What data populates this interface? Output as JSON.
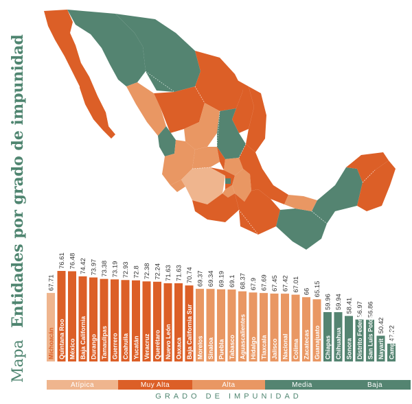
{
  "title": {
    "prefix": "Mapa",
    "main": "Entidades por grado de impunidad"
  },
  "colors": {
    "atipica": "#efb58e",
    "muy_alta": "#dc5f27",
    "alta": "#e99763",
    "media": "#548471",
    "baja": "#548471",
    "title": "#4f8570"
  },
  "legend": {
    "title": "GRADO DE IMPUNIDAD",
    "items": [
      {
        "label": "Atípica",
        "color": "#efb58e"
      },
      {
        "label": "Muy Alta",
        "color": "#dc5f27"
      },
      {
        "label": "Alta",
        "color": "#e99763"
      },
      {
        "label": "Media",
        "color": "#548471"
      },
      {
        "label": "Baja",
        "color": "#548471"
      }
    ]
  },
  "chart_data": {
    "type": "bar",
    "categories": [
      "Michoacán",
      "Quintana Roo",
      "México",
      "Baja California",
      "Durango",
      "Tamaulipas",
      "Guerrero",
      "Coahuila",
      "Yucatán",
      "Veracruz",
      "Querétaro",
      "Nuevo León",
      "Oaxaca",
      "Baja California Sur",
      "Morelos",
      "Sinaloa",
      "Puebla",
      "Tabasco",
      "Aguascalientes",
      "Hidalgo",
      "Tlaxcala",
      "Jalisco",
      "Nacional",
      "Colima",
      "Zacatecas",
      "Guanajuato",
      "Chiapas",
      "Chihuahua",
      "Sonora",
      "Distrito Federal",
      "San Luis Potosí",
      "Nayarit",
      "Campeche"
    ],
    "values": [
      67.71,
      76.61,
      76.48,
      74.42,
      73.97,
      73.38,
      73.19,
      72.93,
      72.8,
      72.38,
      72.24,
      71.63,
      71.63,
      70.74,
      69.37,
      69.34,
      69.19,
      69.1,
      68.37,
      67.9,
      67.69,
      67.45,
      67.42,
      67.01,
      66,
      65.15,
      59.96,
      59.94,
      58.41,
      56.97,
      56.86,
      50.42,
      47.22
    ],
    "value_labels": [
      "67.71",
      "76.61",
      "76.48",
      "74.42",
      "73.97",
      "73.38",
      "73.19",
      "72.93",
      "72.8",
      "72.38",
      "72.24",
      "71.63",
      "71.63",
      "70.74",
      "69.37",
      "69.34",
      "69.19",
      "69.1",
      "68.37",
      "67.9",
      "67.69",
      "67.45",
      "67.42",
      "67.01",
      "66",
      "65.15",
      "59.96",
      "59.94",
      "58.41",
      "56.97",
      "56.86",
      "50.42",
      "47.22"
    ],
    "groups": [
      "atipica",
      "muy_alta",
      "muy_alta",
      "muy_alta",
      "muy_alta",
      "muy_alta",
      "muy_alta",
      "muy_alta",
      "muy_alta",
      "muy_alta",
      "muy_alta",
      "muy_alta",
      "muy_alta",
      "muy_alta",
      "alta",
      "alta",
      "alta",
      "alta",
      "alta",
      "alta",
      "alta",
      "alta",
      "alta",
      "alta",
      "alta",
      "alta",
      "media",
      "media",
      "media",
      "media",
      "media",
      "media",
      "media"
    ]
  }
}
